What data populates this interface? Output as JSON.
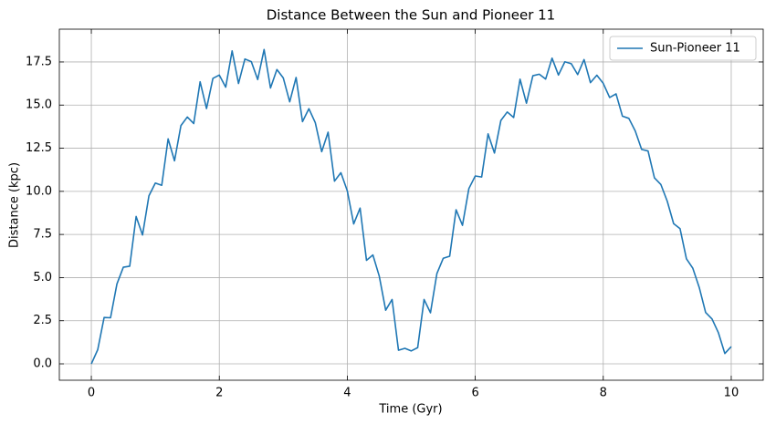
{
  "chart_data": {
    "type": "line",
    "title": "Distance Between the Sun and Pioneer 11",
    "xlabel": "Time (Gyr)",
    "ylabel": "Distance (kpc)",
    "x": [
      0,
      0.1,
      0.2,
      0.3,
      0.4,
      0.5,
      0.6,
      0.7,
      0.8,
      0.9,
      1,
      1.1,
      1.2,
      1.3,
      1.4,
      1.5,
      1.6,
      1.7,
      1.8,
      1.9,
      2,
      2.1,
      2.2,
      2.3,
      2.4,
      2.5,
      2.6,
      2.7,
      2.8,
      2.9,
      3,
      3.1,
      3.2,
      3.3,
      3.4,
      3.5,
      3.6,
      3.7,
      3.8,
      3.9,
      4,
      4.1,
      4.2,
      4.3,
      4.4,
      4.5,
      4.6,
      4.7,
      4.8,
      4.9,
      5,
      5.1,
      5.2,
      5.3,
      5.4,
      5.5,
      5.6,
      5.7,
      5.8,
      5.9,
      6,
      6.1,
      6.2,
      6.3,
      6.4,
      6.5,
      6.6,
      6.7,
      6.8,
      6.9,
      7,
      7.1,
      7.2,
      7.3,
      7.4,
      7.5,
      7.6,
      7.7,
      7.8,
      7.9,
      8,
      8.1,
      8.2,
      8.3,
      8.4,
      8.5,
      8.6,
      8.7,
      8.8,
      8.9,
      9,
      9.1,
      9.2,
      9.3,
      9.4,
      9.5,
      9.6,
      9.7,
      9.8,
      9.9,
      10
    ],
    "series": [
      {
        "name": "Sun-Pioneer 11",
        "color": "#1f77b4",
        "values": [
          0,
          0.82,
          2.69,
          2.67,
          4.63,
          5.6,
          5.66,
          8.54,
          7.47,
          9.74,
          10.48,
          10.35,
          13.04,
          11.77,
          13.81,
          14.31,
          13.93,
          16.35,
          14.8,
          16.55,
          16.74,
          16.04,
          18.14,
          16.25,
          17.67,
          17.52,
          16.48,
          18.22,
          15.99,
          17.06,
          16.57,
          15.19,
          16.6,
          14.04,
          14.79,
          13.98,
          12.3,
          13.43,
          10.59,
          11.08,
          10.03,
          8.11,
          9.03,
          6.0,
          6.31,
          5.08,
          3.11,
          3.73,
          0.79,
          0.9,
          0.75,
          0.94,
          3.73,
          2.96,
          5.23,
          6.12,
          6.24,
          8.93,
          8.03,
          10.16,
          10.89,
          10.83,
          13.33,
          12.22,
          14.11,
          14.6,
          14.28,
          16.5,
          15.11,
          16.7,
          16.79,
          16.51,
          17.72,
          16.74,
          17.51,
          17.4,
          16.77,
          17.64,
          16.3,
          16.73,
          16.26,
          15.44,
          15.65,
          14.36,
          14.23,
          13.5,
          12.43,
          12.34,
          10.78,
          10.4,
          9.43,
          8.13,
          7.84,
          6.09,
          5.54,
          4.43,
          2.98,
          2.6,
          1.8,
          0.6,
          1.0
        ]
      }
    ],
    "xlim": [
      -0.5,
      10.5
    ],
    "xticks": [
      0,
      2,
      4,
      6,
      8,
      10
    ],
    "ylim": [
      -0.95,
      19.4
    ],
    "yticks": [
      {
        "value": 0,
        "label": "0.0"
      },
      2.5,
      {
        "value": 5,
        "label": "5.0"
      },
      7.5,
      {
        "value": 10,
        "label": "10.0"
      },
      12.5,
      {
        "value": 15,
        "label": "15.0"
      },
      17.5
    ],
    "grid": true,
    "legend": "upper right"
  }
}
